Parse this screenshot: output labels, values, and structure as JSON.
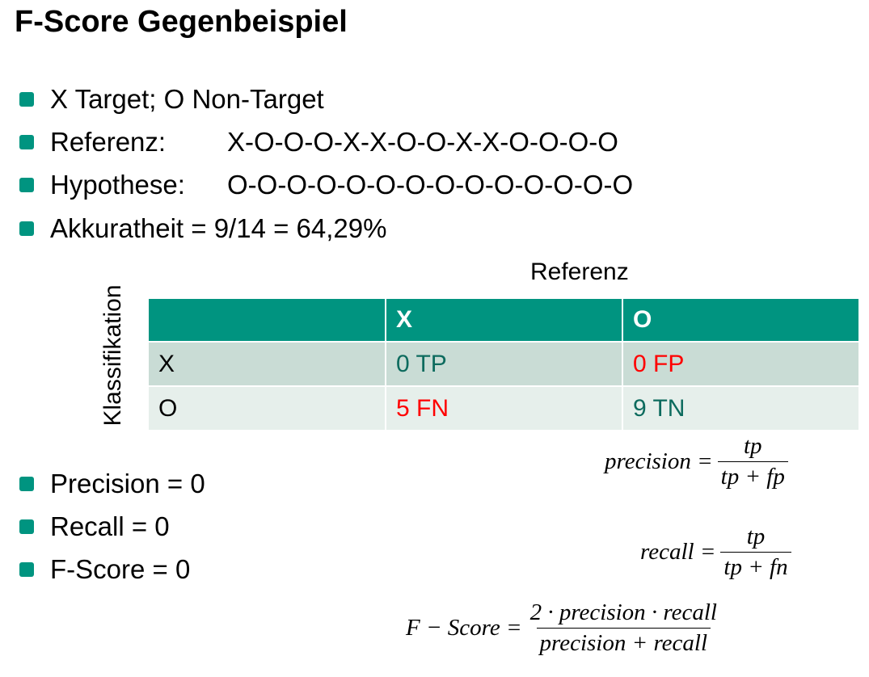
{
  "title": "F-Score Gegenbeispiel",
  "bullets": [
    {
      "label": "X Target; O Non-Target",
      "seq": ""
    },
    {
      "label": "Referenz:",
      "seq": "X-O-O-O-X-X-O-O-X-X-O-O-O-O"
    },
    {
      "label": "Hypothese:",
      "seq": "O-O-O-O-O-O-O-O-O-O-O-O-O-O"
    },
    {
      "label": "Akkuratheit = 9/14 = 64,29%",
      "seq": ""
    }
  ],
  "table": {
    "top_label": "Referenz",
    "side_label": "Klassifikation",
    "headers": [
      "",
      "X",
      "O"
    ],
    "rows": [
      {
        "label": "X",
        "c1": "0 TP",
        "c2": "0 FP"
      },
      {
        "label": "O",
        "c1": "5 FN",
        "c2": "9 TN"
      }
    ]
  },
  "results": [
    "Precision = 0",
    "Recall = 0",
    "F-Score = 0"
  ],
  "formulas": {
    "precision": {
      "lhs": "precision =",
      "num": "tp",
      "den": "tp + fp"
    },
    "recall": {
      "lhs": "recall =",
      "num": "tp",
      "den": "tp + fn"
    },
    "fscore": {
      "lhs": "F − Score =",
      "num": "2 · precision · recall",
      "den": "precision + recall"
    }
  },
  "colors": {
    "accent": "#009480",
    "positive_text": "#0d6b5e",
    "negative_text": "#ff0000",
    "row1_bg": "#c9dcd5",
    "row2_bg": "#e6efeb"
  }
}
